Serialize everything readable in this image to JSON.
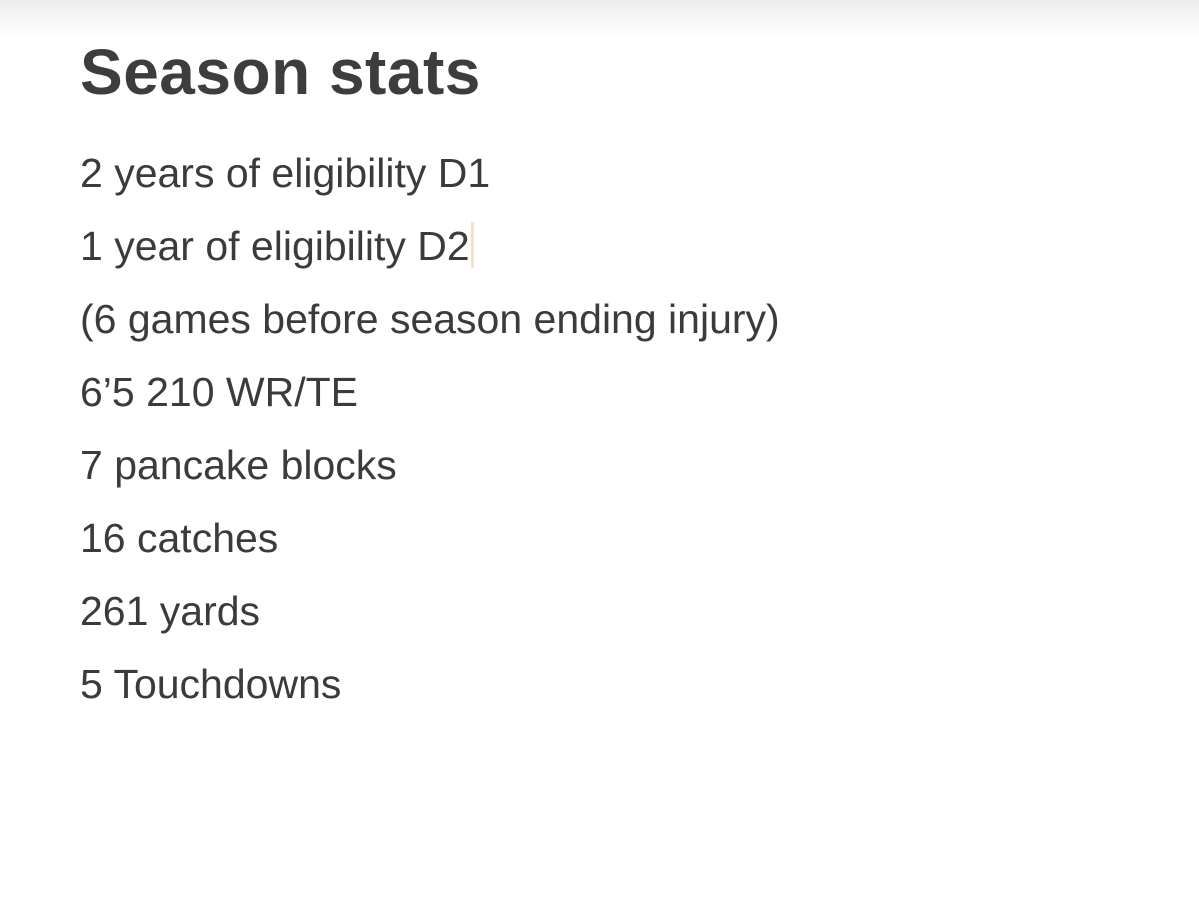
{
  "note": {
    "title": "Season stats",
    "lines": [
      "2 years of eligibility D1",
      "1 year of eligibility D2",
      "(6 games before season ending injury)",
      "6’5 210 WR/TE",
      "7 pancake blocks",
      "16 catches",
      "261 yards",
      "5 Touchdowns"
    ]
  },
  "colors": {
    "text": "#3b3b3b",
    "caret": "#f3e6b8",
    "background": "#ffffff"
  }
}
